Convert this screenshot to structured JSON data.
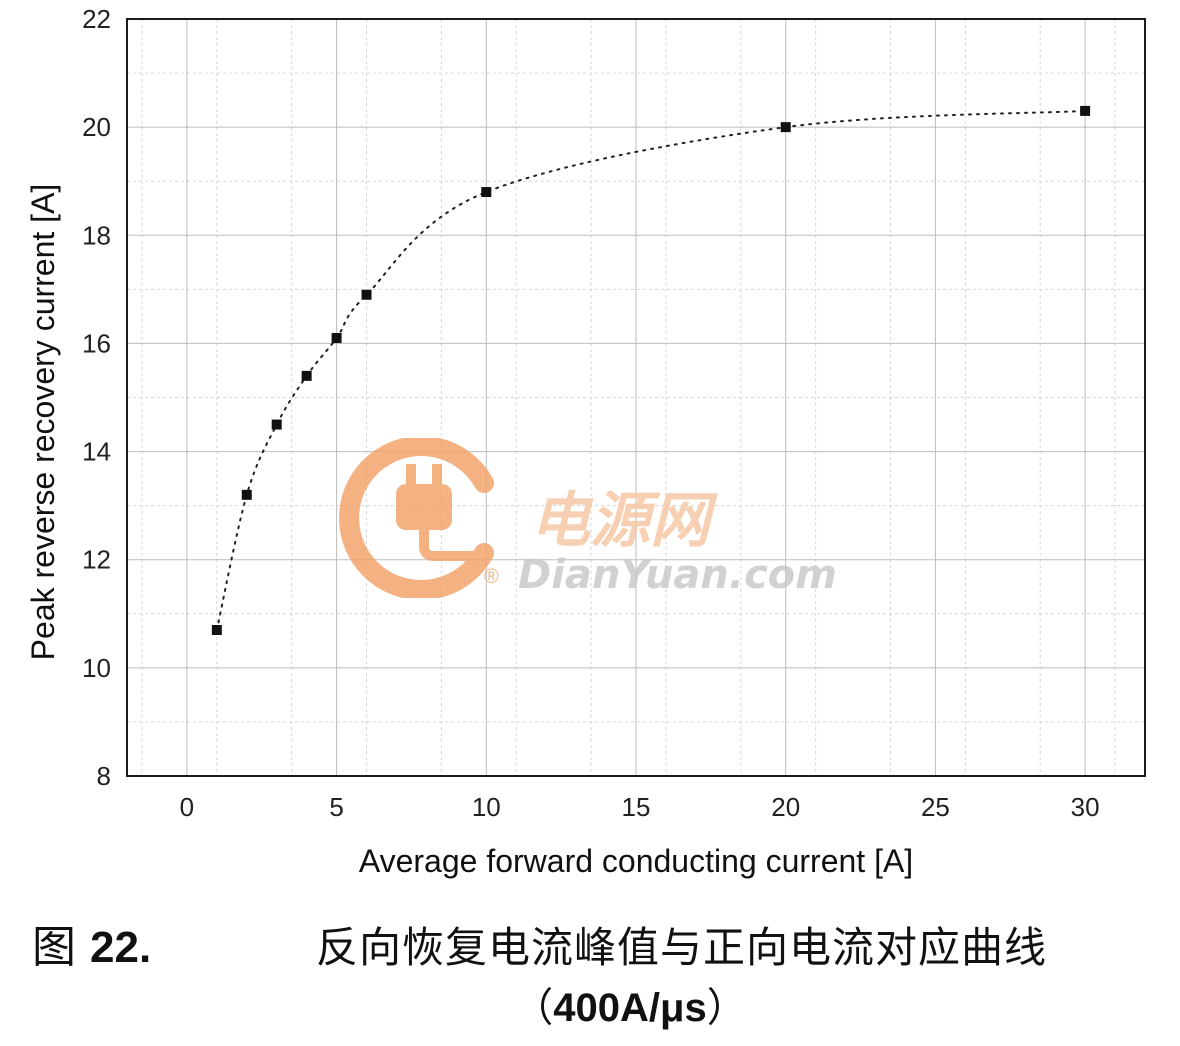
{
  "chart_data": {
    "type": "scatter",
    "title": "",
    "xlabel": "Average forward conducting current [A]",
    "ylabel": "Peak reverse recovery current [A]",
    "xlim": [
      -2,
      32
    ],
    "ylim": [
      8,
      22
    ],
    "x_ticks": [
      0,
      5,
      10,
      15,
      20,
      25,
      30
    ],
    "y_ticks": [
      8,
      10,
      12,
      14,
      16,
      18,
      20,
      22
    ],
    "grid": true,
    "trendline": "dotted",
    "series": [
      {
        "x": [
          1,
          2,
          3,
          4,
          5,
          6,
          10,
          20,
          30
        ],
        "y": [
          10.7,
          13.2,
          14.5,
          15.4,
          16.1,
          16.9,
          18.8,
          20.0,
          20.3
        ]
      }
    ]
  },
  "caption": {
    "figure_label_prefix": "图",
    "figure_number": "22.",
    "title": "反向恢复电流峰值与正向电流对应曲线",
    "subtitle_open": "（",
    "subtitle_value": "400A/μs",
    "subtitle_close": "）"
  },
  "watermark": {
    "cn": "电源网",
    "en": "DianYuan.com",
    "registered": "®",
    "icon": "plug-logo-icon",
    "colors": {
      "orange": "#f3a46c",
      "gray": "#c9c9c9"
    }
  }
}
